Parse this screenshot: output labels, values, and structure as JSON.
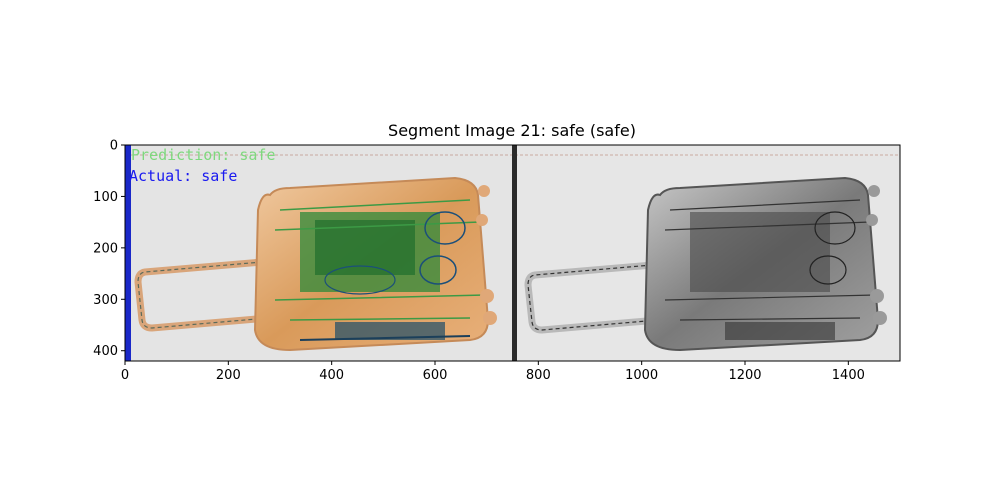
{
  "chart_data": {
    "type": "image",
    "title": "Segment Image 21: safe (safe)",
    "xlim": [
      0,
      1500
    ],
    "ylim": [
      420,
      0
    ],
    "xticks": [
      0,
      200,
      400,
      600,
      800,
      1000,
      1200,
      1400
    ],
    "yticks": [
      0,
      100,
      200,
      300,
      400
    ],
    "overlay_text": {
      "prediction": "Prediction: safe",
      "actual": "Actual: safe"
    },
    "colors": {
      "prediction_text": "#7ed87e",
      "actual_text": "#1a1af0",
      "left_bar": "#1a28c8",
      "divider": "#2a2a2a",
      "background_scan": "#e6e6e6"
    }
  }
}
